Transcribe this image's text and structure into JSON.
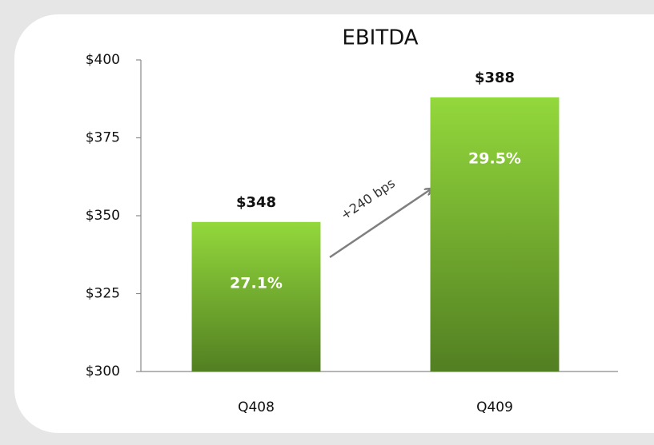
{
  "chart_data": {
    "type": "bar",
    "title": "EBITDA",
    "categories": [
      "Q408",
      "Q409"
    ],
    "values": [
      348,
      388
    ],
    "value_labels": [
      "$348",
      "$388"
    ],
    "bar_annotations": [
      "27.1%",
      "29.5%"
    ],
    "arrow_annotation": "+240 bps",
    "color": "#7cc030",
    "ylim": [
      300,
      400
    ],
    "yticks": [
      {
        "value": 300,
        "label": "$300"
      },
      {
        "value": 325,
        "label": "$325"
      },
      {
        "value": 350,
        "label": "$350"
      },
      {
        "value": 375,
        "label": "$375"
      },
      {
        "value": 400,
        "label": "$400"
      }
    ],
    "grid": false
  }
}
